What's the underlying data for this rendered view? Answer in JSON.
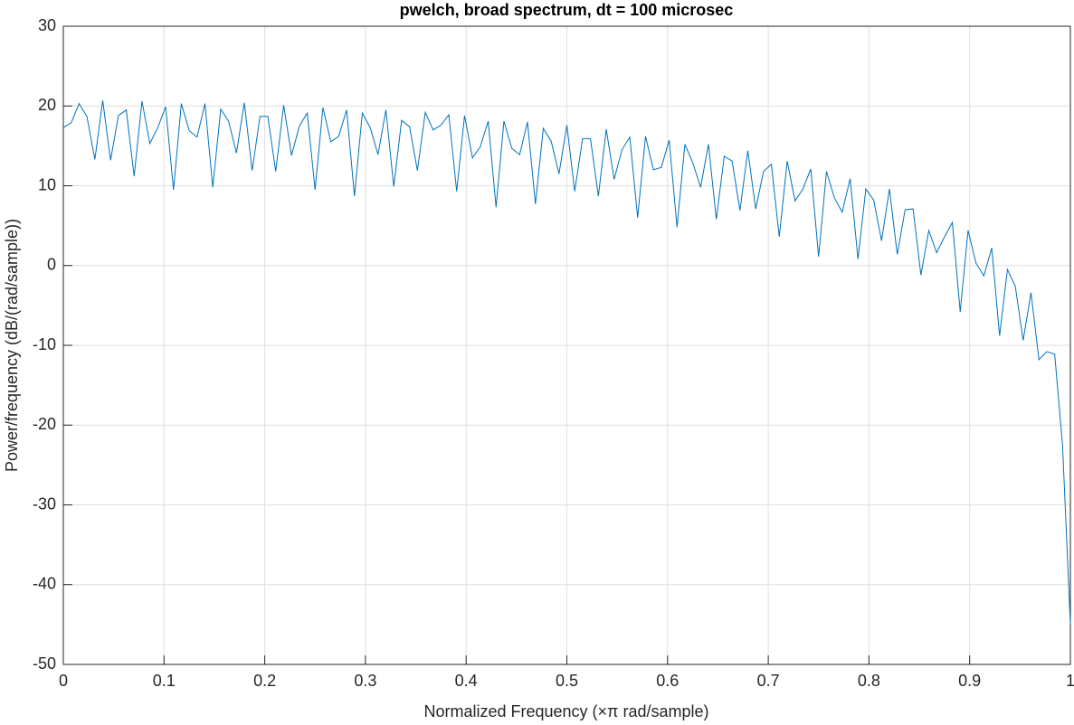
{
  "chart_data": {
    "type": "line",
    "title": "pwelch, broad spectrum, dt = 100 microsec",
    "xlabel": "Normalized Frequency  (×π rad/sample)",
    "ylabel": "Power/frequency (dB/(rad/sample))",
    "xlim": [
      0,
      1
    ],
    "ylim": [
      -50,
      30
    ],
    "xticks": [
      0,
      0.1,
      0.2,
      0.3,
      0.4,
      0.5,
      0.6,
      0.7,
      0.8,
      0.9,
      1
    ],
    "yticks": [
      -50,
      -40,
      -30,
      -20,
      -10,
      0,
      10,
      20,
      30
    ],
    "grid": true,
    "x": [
      0,
      0.0078,
      0.0156,
      0.0234,
      0.0313,
      0.0391,
      0.0469,
      0.0547,
      0.0625,
      0.0703,
      0.0781,
      0.0859,
      0.0938,
      0.1016,
      0.1094,
      0.1172,
      0.125,
      0.1328,
      0.1406,
      0.1484,
      0.1563,
      0.1641,
      0.1719,
      0.1797,
      0.1875,
      0.1953,
      0.2031,
      0.2109,
      0.2188,
      0.2266,
      0.2344,
      0.2422,
      0.25,
      0.2578,
      0.2656,
      0.2734,
      0.2813,
      0.2891,
      0.2969,
      0.3047,
      0.3125,
      0.3203,
      0.3281,
      0.3359,
      0.3438,
      0.3516,
      0.3594,
      0.3672,
      0.375,
      0.3828,
      0.3906,
      0.3984,
      0.4063,
      0.4141,
      0.4219,
      0.4297,
      0.4375,
      0.4453,
      0.4531,
      0.4609,
      0.4688,
      0.4766,
      0.4844,
      0.4922,
      0.5,
      0.5078,
      0.5156,
      0.5234,
      0.5313,
      0.5391,
      0.5469,
      0.5547,
      0.5625,
      0.5703,
      0.5781,
      0.5859,
      0.5938,
      0.6016,
      0.6094,
      0.6172,
      0.625,
      0.6328,
      0.6406,
      0.6484,
      0.6563,
      0.6641,
      0.6719,
      0.6797,
      0.6875,
      0.6953,
      0.7031,
      0.7109,
      0.7188,
      0.7266,
      0.7344,
      0.7422,
      0.75,
      0.7578,
      0.7656,
      0.7734,
      0.7813,
      0.7891,
      0.7969,
      0.8047,
      0.8125,
      0.8203,
      0.8281,
      0.8359,
      0.8438,
      0.8516,
      0.8594,
      0.8672,
      0.875,
      0.8828,
      0.8906,
      0.8984,
      0.9063,
      0.9141,
      0.9219,
      0.9297,
      0.9375,
      0.9453,
      0.9531,
      0.9609,
      0.9688,
      0.9766,
      0.9844,
      0.9922,
      1
    ],
    "series": [
      {
        "color": "#0072bd",
        "values": [
          17.3,
          17.9,
          20.3,
          18.7,
          13.3,
          20.7,
          13.2,
          18.8,
          19.5,
          11.2,
          20.6,
          15.3,
          17.3,
          19.9,
          9.5,
          20.3,
          16.9,
          16.1,
          20.3,
          9.8,
          19.6,
          18.1,
          14.1,
          20.4,
          11.9,
          18.7,
          18.7,
          11.8,
          20.1,
          13.8,
          17.5,
          19.1,
          9.5,
          19.8,
          15.5,
          16.2,
          19.5,
          8.7,
          19.1,
          17.3,
          13.9,
          19.5,
          9.9,
          18.2,
          17.4,
          11.9,
          19.2,
          17.0,
          17.6,
          18.9,
          9.3,
          18.8,
          13.5,
          14.9,
          18.1,
          7.3,
          18.1,
          14.7,
          13.9,
          18.0,
          7.7,
          17.2,
          15.6,
          11.5,
          17.6,
          9.3,
          15.9,
          15.9,
          8.7,
          17.1,
          10.8,
          14.5,
          16.1,
          6.0,
          16.2,
          12.0,
          12.3,
          15.7,
          4.8,
          15.2,
          12.9,
          9.8,
          15.2,
          5.8,
          13.7,
          13.1,
          6.9,
          14.4,
          7.1,
          11.8,
          12.7,
          3.6,
          13.1,
          8.1,
          9.6,
          12.1,
          1.1,
          11.8,
          8.5,
          6.7,
          10.9,
          0.8,
          9.6,
          8.2,
          3.1,
          9.6,
          1.4,
          7.0,
          7.1,
          -1.2,
          4.4,
          1.6,
          3.6,
          5.4,
          -5.8,
          4.4,
          0.3,
          -1.3,
          2.2,
          -8.8,
          -0.5,
          -2.6,
          -9.4,
          -3.4,
          -11.8,
          -10.8,
          -11.1,
          -22.5,
          -44.9
        ]
      }
    ]
  }
}
